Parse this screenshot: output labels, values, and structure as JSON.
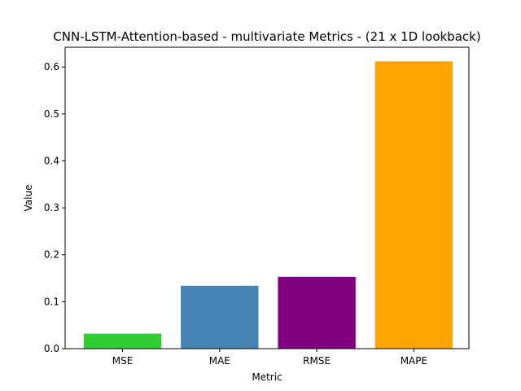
{
  "chart_data": {
    "type": "bar",
    "title": "CNN-LSTM-Attention-based - multivariate Metrics - (21 x 1D lookback)",
    "xlabel": "Metric",
    "ylabel": "Value",
    "categories": [
      "MSE",
      "MAE",
      "RMSE",
      "MAPE"
    ],
    "values": [
      0.032,
      0.134,
      0.153,
      0.612
    ],
    "colors": [
      "#32cd32",
      "#4682b4",
      "#800080",
      "#ffa500"
    ],
    "ylim": [
      0,
      0.642
    ],
    "yticks": [
      0.0,
      0.1,
      0.2,
      0.3,
      0.4,
      0.5,
      0.6
    ],
    "ytick_labels": [
      "0.0",
      "0.1",
      "0.2",
      "0.3",
      "0.4",
      "0.5",
      "0.6"
    ],
    "grid": false,
    "legend": "none"
  }
}
